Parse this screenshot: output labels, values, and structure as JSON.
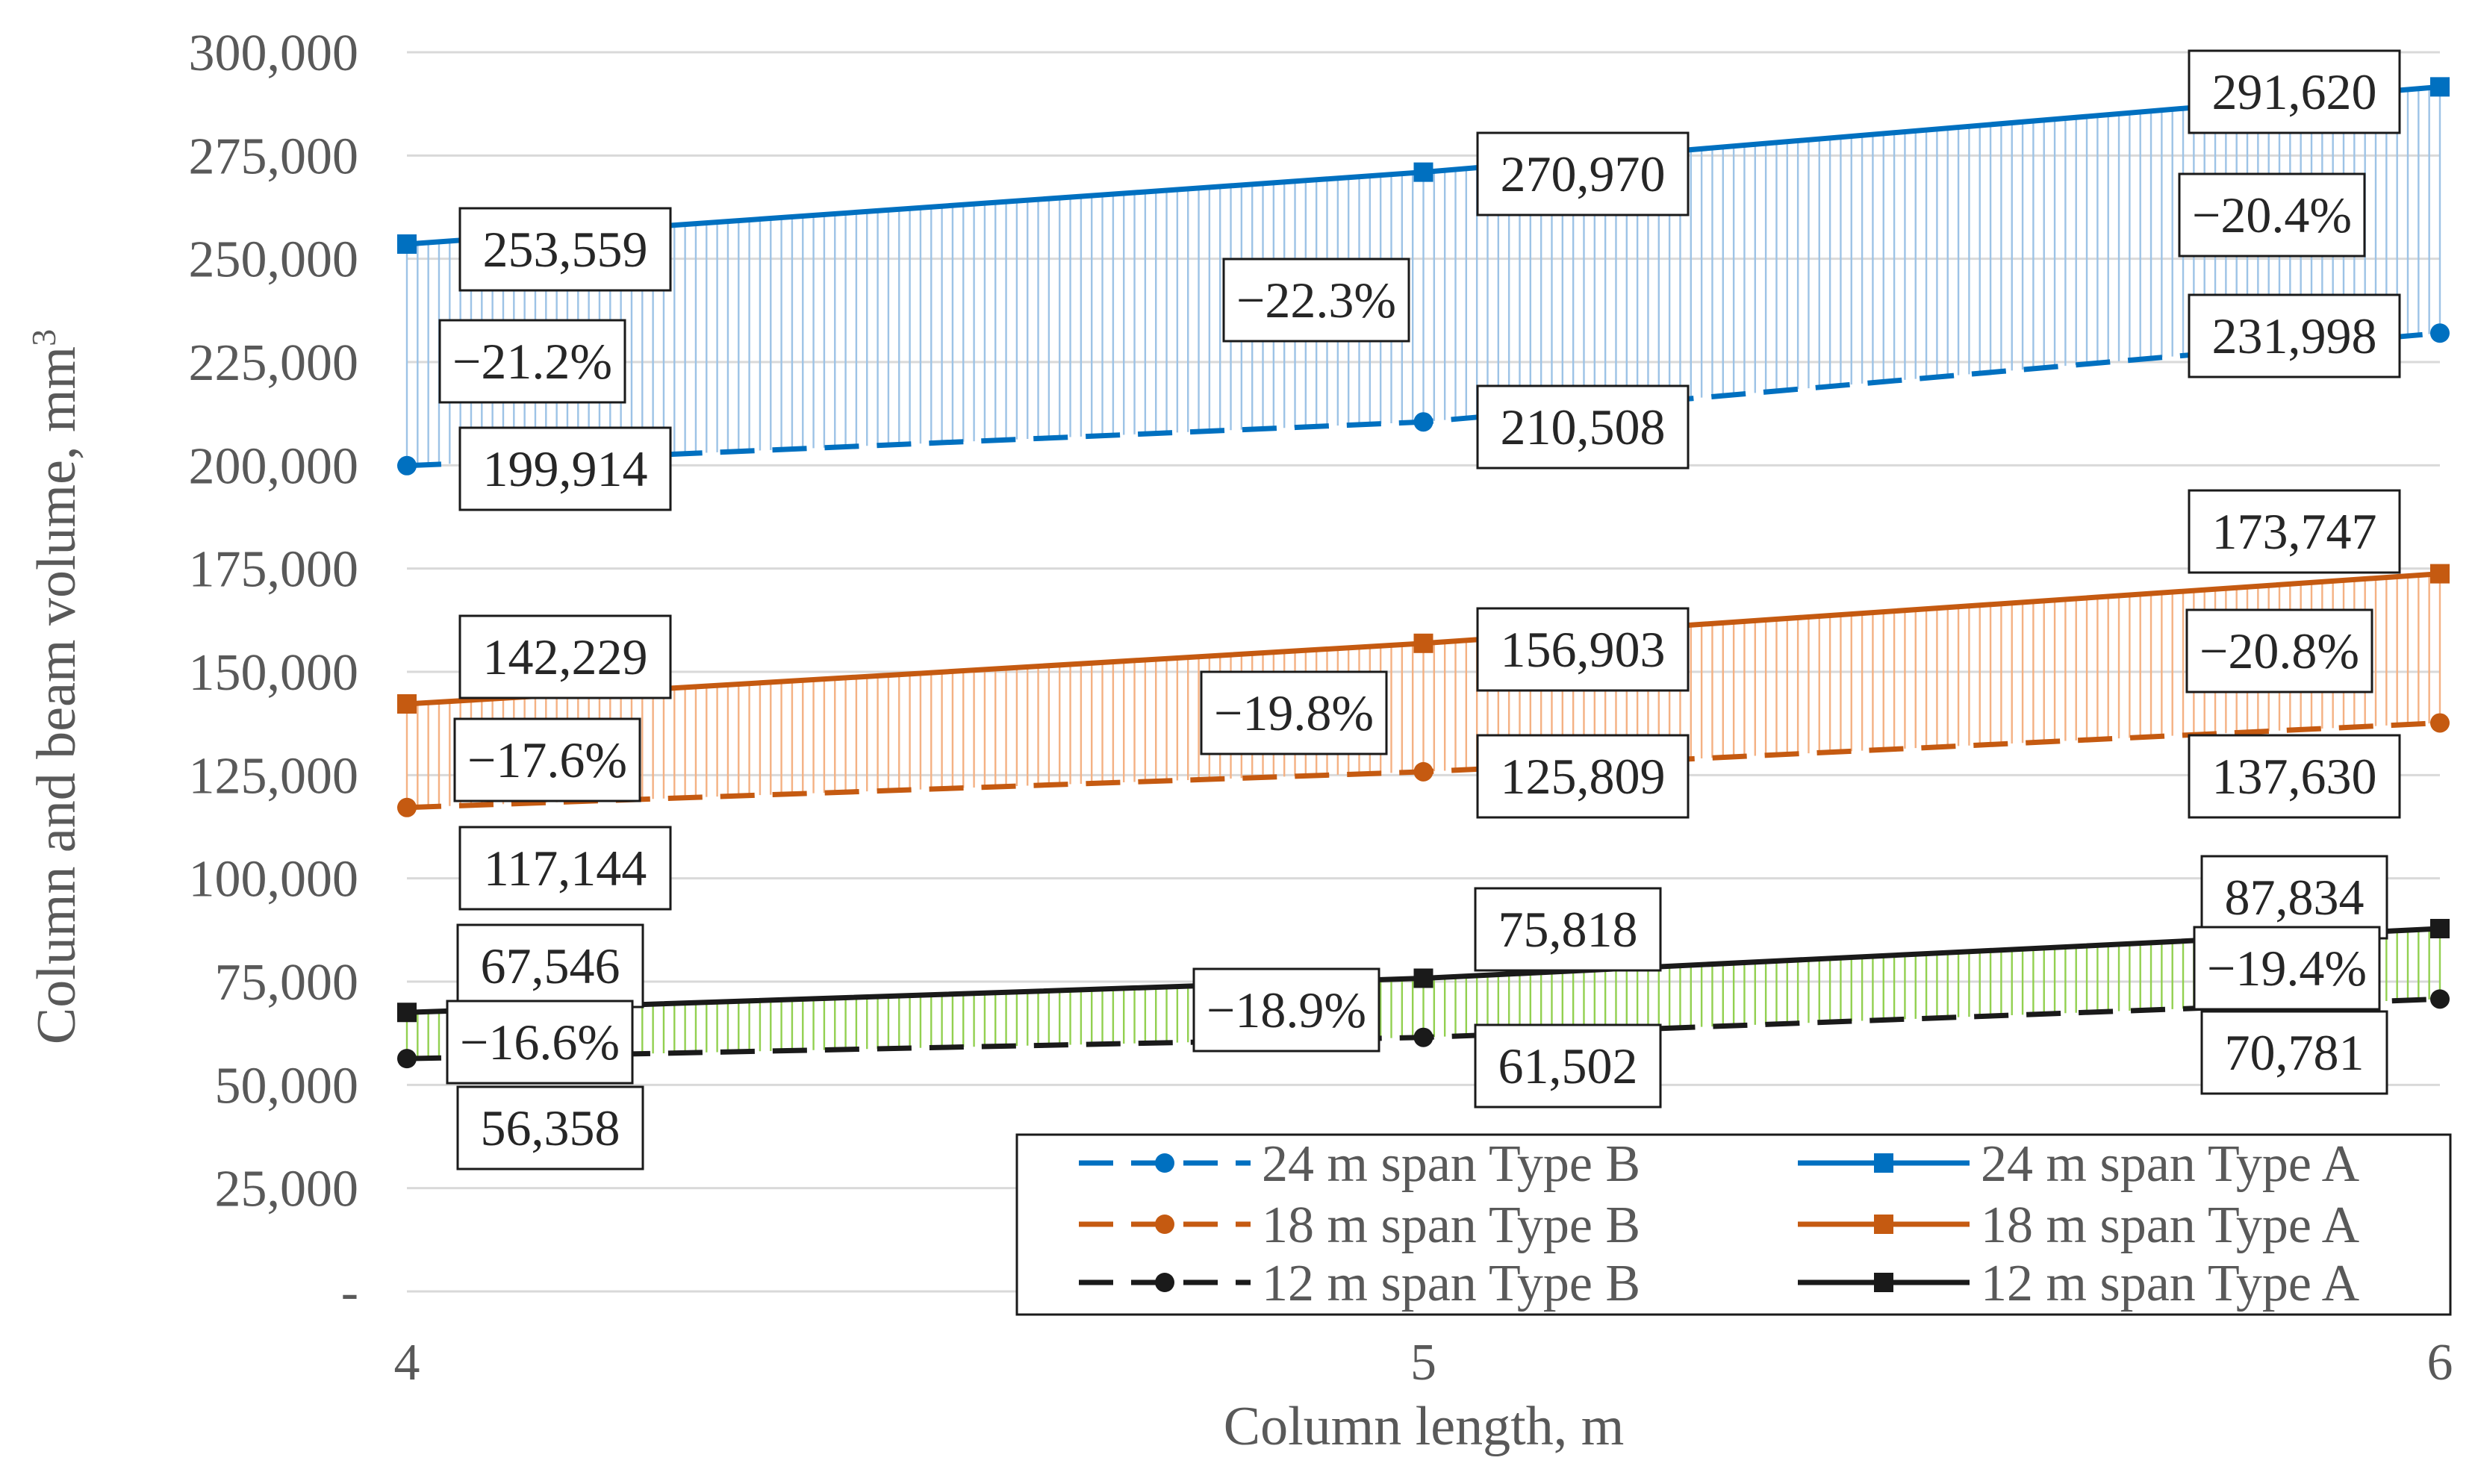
{
  "chart_data": {
    "type": "line",
    "xlabel": "Column length, m",
    "ylabel": "Column and beam volume, mm",
    "ylabel_superscript": "3",
    "x": [
      4,
      5,
      6
    ],
    "x_tick_labels": [
      "4",
      "5",
      "6"
    ],
    "ylim": [
      0,
      300000
    ],
    "y_ticks": [
      0,
      25000,
      50000,
      75000,
      100000,
      125000,
      150000,
      175000,
      200000,
      225000,
      250000,
      275000,
      300000
    ],
    "y_tick_labels": [
      "-",
      "25,000",
      "50,000",
      "75,000",
      "100,000",
      "125,000",
      "150,000",
      "175,000",
      "200,000",
      "225,000",
      "250,000",
      "275,000",
      "300,000"
    ],
    "grid": true,
    "legend_position": "bottom-right",
    "colors": {
      "span24": "#0070c0",
      "span24_fill": "#9dc3e6",
      "span18": "#c55a11",
      "span18_fill": "#f4b183",
      "span12": "#1a1a1a",
      "span12_fill": "#92d050",
      "grid": "#d9d9d9"
    },
    "series": [
      {
        "name": "24 m span Type B",
        "span": "24",
        "type": "B",
        "style": "dashed",
        "marker": "circle",
        "values": [
          199914,
          210508,
          231998
        ],
        "labels": [
          "199,914",
          "210,508",
          "231,998"
        ]
      },
      {
        "name": "24 m span Type A",
        "span": "24",
        "type": "A",
        "style": "solid",
        "marker": "square",
        "values": [
          253559,
          270970,
          291620
        ],
        "labels": [
          "253,559",
          "270,970",
          "291,620"
        ]
      },
      {
        "name": "18 m span Type B",
        "span": "18",
        "type": "B",
        "style": "dashed",
        "marker": "circle",
        "values": [
          117144,
          125809,
          137630
        ],
        "labels": [
          "117,144",
          "125,809",
          "137,630"
        ]
      },
      {
        "name": "18 m span Type A",
        "span": "18",
        "type": "A",
        "style": "solid",
        "marker": "square",
        "values": [
          142229,
          156903,
          173747
        ],
        "labels": [
          "142,229",
          "156,903",
          "173,747"
        ]
      },
      {
        "name": "12 m span Type B",
        "span": "12",
        "type": "B",
        "style": "dashed",
        "marker": "circle",
        "values": [
          56358,
          61502,
          70781
        ],
        "labels": [
          "56,358",
          "61,502",
          "70,781"
        ]
      },
      {
        "name": "12 m span Type A",
        "span": "12",
        "type": "A",
        "style": "solid",
        "marker": "square",
        "values": [
          67546,
          75818,
          87834
        ],
        "labels": [
          "67,546",
          "75,818",
          "87,834"
        ]
      }
    ],
    "reductions": [
      {
        "span": "24",
        "labels": [
          "−21.2%",
          "−22.3%",
          "−20.4%"
        ]
      },
      {
        "span": "18",
        "labels": [
          "−17.6%",
          "−19.8%",
          "−20.8%"
        ]
      },
      {
        "span": "12",
        "labels": [
          "−16.6%",
          "−18.9%",
          "−19.4%"
        ]
      }
    ]
  }
}
